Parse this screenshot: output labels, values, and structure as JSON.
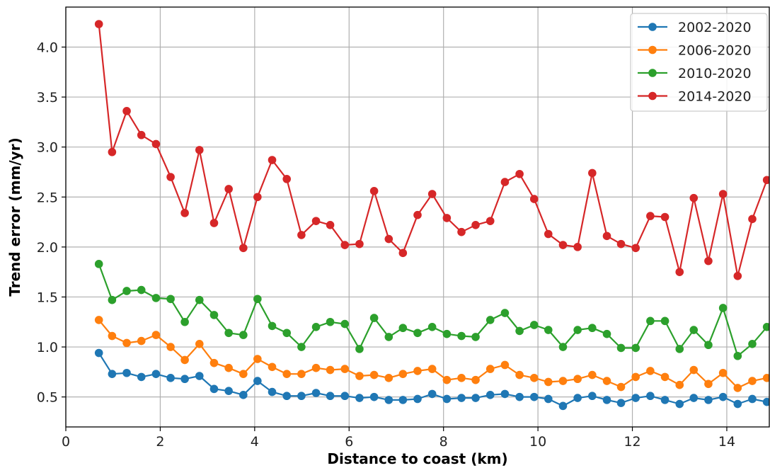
{
  "chart_data": {
    "type": "line",
    "xlabel": "Distance to coast (km)",
    "ylabel": "Trend error (mm/yr)",
    "xlim": [
      0,
      14.9
    ],
    "ylim": [
      0.2,
      4.4
    ],
    "x_ticks": [
      0,
      2,
      4,
      6,
      8,
      10,
      12,
      14
    ],
    "x_tick_labels": [
      "0",
      "2",
      "4",
      "6",
      "8",
      "10",
      "12",
      "14"
    ],
    "y_ticks": [
      0.5,
      1.0,
      1.5,
      2.0,
      2.5,
      3.0,
      3.5,
      4.0
    ],
    "y_tick_labels": [
      "0.5",
      "1.0",
      "1.5",
      "2.0",
      "2.5",
      "3.0",
      "3.5",
      "4.0"
    ],
    "grid": true,
    "legend_position": "top-right",
    "x": [
      0.7,
      0.98,
      1.29,
      1.6,
      1.91,
      2.22,
      2.52,
      2.83,
      3.14,
      3.45,
      3.76,
      4.06,
      4.37,
      4.68,
      4.99,
      5.3,
      5.6,
      5.91,
      6.22,
      6.53,
      6.84,
      7.14,
      7.45,
      7.76,
      8.07,
      8.38,
      8.68,
      8.99,
      9.3,
      9.61,
      9.92,
      10.22,
      10.53,
      10.84,
      11.15,
      11.46,
      11.76,
      12.07,
      12.38,
      12.69,
      13.0,
      13.3,
      13.61,
      13.92,
      14.23,
      14.54,
      14.85
    ],
    "series": [
      {
        "name": "2002-2020",
        "color": "#1f77b4",
        "values": [
          0.94,
          0.73,
          0.74,
          0.7,
          0.73,
          0.69,
          0.68,
          0.71,
          0.58,
          0.56,
          0.52,
          0.66,
          0.55,
          0.51,
          0.51,
          0.54,
          0.51,
          0.51,
          0.49,
          0.5,
          0.47,
          0.47,
          0.48,
          0.53,
          0.48,
          0.49,
          0.49,
          0.52,
          0.53,
          0.5,
          0.5,
          0.48,
          0.41,
          0.49,
          0.51,
          0.47,
          0.44,
          0.49,
          0.51,
          0.47,
          0.43,
          0.49,
          0.47,
          0.5,
          0.43,
          0.48,
          0.45
        ]
      },
      {
        "name": "2006-2020",
        "color": "#ff7f0e",
        "values": [
          1.27,
          1.11,
          1.04,
          1.06,
          1.12,
          1.0,
          0.87,
          1.03,
          0.84,
          0.79,
          0.73,
          0.88,
          0.8,
          0.73,
          0.73,
          0.79,
          0.77,
          0.78,
          0.71,
          0.72,
          0.69,
          0.73,
          0.76,
          0.78,
          0.67,
          0.69,
          0.67,
          0.78,
          0.82,
          0.72,
          0.69,
          0.65,
          0.66,
          0.68,
          0.72,
          0.66,
          0.6,
          0.7,
          0.76,
          0.7,
          0.62,
          0.77,
          0.63,
          0.74,
          0.59,
          0.66,
          0.69
        ]
      },
      {
        "name": "2010-2020",
        "color": "#2ca02c",
        "values": [
          1.83,
          1.47,
          1.56,
          1.57,
          1.49,
          1.48,
          1.25,
          1.47,
          1.32,
          1.14,
          1.12,
          1.48,
          1.21,
          1.14,
          1.0,
          1.2,
          1.25,
          1.23,
          0.98,
          1.29,
          1.1,
          1.19,
          1.14,
          1.2,
          1.13,
          1.11,
          1.1,
          1.27,
          1.34,
          1.16,
          1.22,
          1.17,
          1.0,
          1.17,
          1.19,
          1.13,
          0.99,
          0.99,
          1.26,
          1.26,
          0.98,
          1.17,
          1.02,
          1.39,
          0.91,
          1.03,
          1.2
        ]
      },
      {
        "name": "2014-2020",
        "color": "#d62728",
        "values": [
          4.23,
          2.95,
          3.36,
          3.12,
          3.03,
          2.7,
          2.34,
          2.97,
          2.24,
          2.58,
          1.99,
          2.5,
          2.87,
          2.68,
          2.12,
          2.26,
          2.22,
          2.02,
          2.03,
          2.56,
          2.08,
          1.94,
          2.32,
          2.53,
          2.29,
          2.15,
          2.22,
          2.26,
          2.65,
          2.73,
          2.48,
          2.13,
          2.02,
          2.0,
          2.74,
          2.11,
          2.03,
          1.99,
          2.31,
          2.3,
          1.75,
          2.49,
          1.86,
          2.53,
          1.71,
          2.28,
          2.67
        ]
      }
    ]
  }
}
